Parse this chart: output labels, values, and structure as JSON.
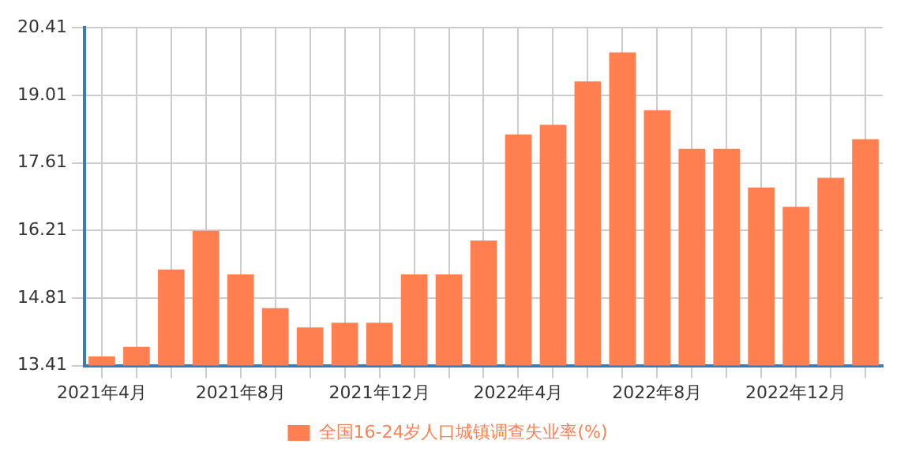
{
  "chart_data": {
    "type": "bar",
    "categories": [
      "2021年4月",
      null,
      null,
      null,
      "2021年8月",
      null,
      null,
      null,
      "2021年12月",
      null,
      null,
      null,
      "2022年4月",
      null,
      null,
      null,
      "2022年8月",
      null,
      null,
      null,
      "2022年12月",
      null,
      null
    ],
    "series": [
      {
        "name": "全国16-24岁人口城镇调查失业率(%)",
        "color": "#ff7f50",
        "values": [
          13.6,
          13.8,
          15.4,
          16.2,
          15.3,
          14.6,
          14.2,
          14.3,
          14.3,
          15.3,
          15.3,
          16.0,
          18.2,
          18.4,
          19.3,
          19.9,
          18.7,
          17.9,
          17.9,
          17.1,
          16.7,
          17.3,
          18.1
        ]
      }
    ],
    "ylim": [
      13.41,
      20.41
    ],
    "yticks": [
      13.41,
      14.81,
      16.21,
      17.61,
      19.01,
      20.41
    ],
    "grid": true,
    "legend": "bottom"
  }
}
